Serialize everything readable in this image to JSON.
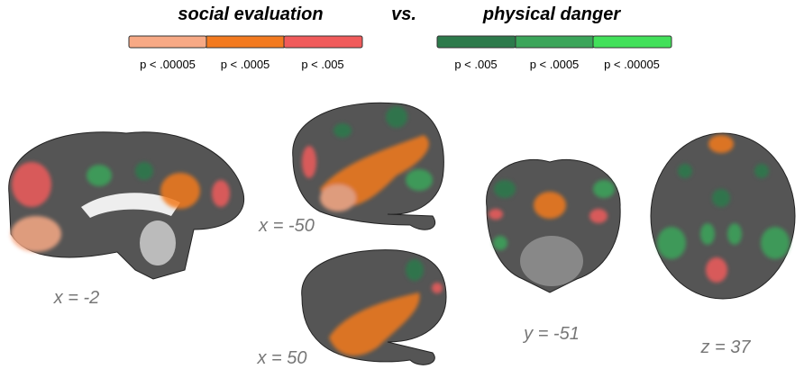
{
  "legend": {
    "left": {
      "title": "social evaluation",
      "levels": [
        "p < .00005",
        "p < .0005",
        "p < .005"
      ]
    },
    "separator": "vs.",
    "right": {
      "title": "physical danger",
      "levels": [
        "p < .005",
        "p < .0005",
        "p < .00005"
      ]
    }
  },
  "slices": [
    {
      "label": "x = -2"
    },
    {
      "label": "x = -50"
    },
    {
      "label": "x = 50"
    },
    {
      "label": "y = -51"
    },
    {
      "label": "z = 37"
    }
  ]
}
